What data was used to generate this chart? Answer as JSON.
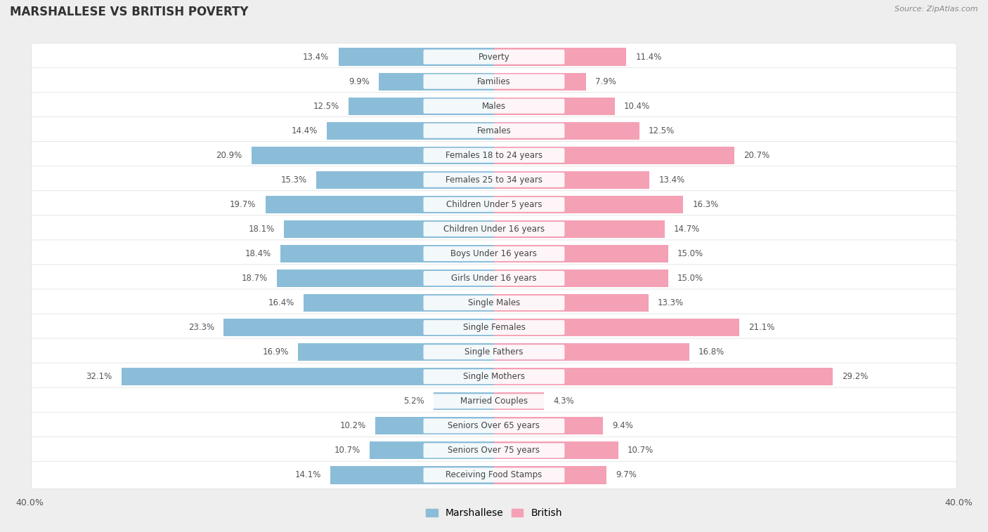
{
  "title": "MARSHALLESE VS BRITISH POVERTY",
  "source": "Source: ZipAtlas.com",
  "categories": [
    "Poverty",
    "Families",
    "Males",
    "Females",
    "Females 18 to 24 years",
    "Females 25 to 34 years",
    "Children Under 5 years",
    "Children Under 16 years",
    "Boys Under 16 years",
    "Girls Under 16 years",
    "Single Males",
    "Single Females",
    "Single Fathers",
    "Single Mothers",
    "Married Couples",
    "Seniors Over 65 years",
    "Seniors Over 75 years",
    "Receiving Food Stamps"
  ],
  "marshallese": [
    13.4,
    9.9,
    12.5,
    14.4,
    20.9,
    15.3,
    19.7,
    18.1,
    18.4,
    18.7,
    16.4,
    23.3,
    16.9,
    32.1,
    5.2,
    10.2,
    10.7,
    14.1
  ],
  "british": [
    11.4,
    7.9,
    10.4,
    12.5,
    20.7,
    13.4,
    16.3,
    14.7,
    15.0,
    15.0,
    13.3,
    21.1,
    16.8,
    29.2,
    4.3,
    9.4,
    10.7,
    9.7
  ],
  "marshallese_color": "#8bbdd9",
  "british_color": "#f4a0b5",
  "axis_max": 40.0,
  "bg_color": "#eeeeee",
  "bar_bg_color": "#ffffff",
  "label_fontsize": 8.5,
  "title_fontsize": 12,
  "source_fontsize": 8
}
